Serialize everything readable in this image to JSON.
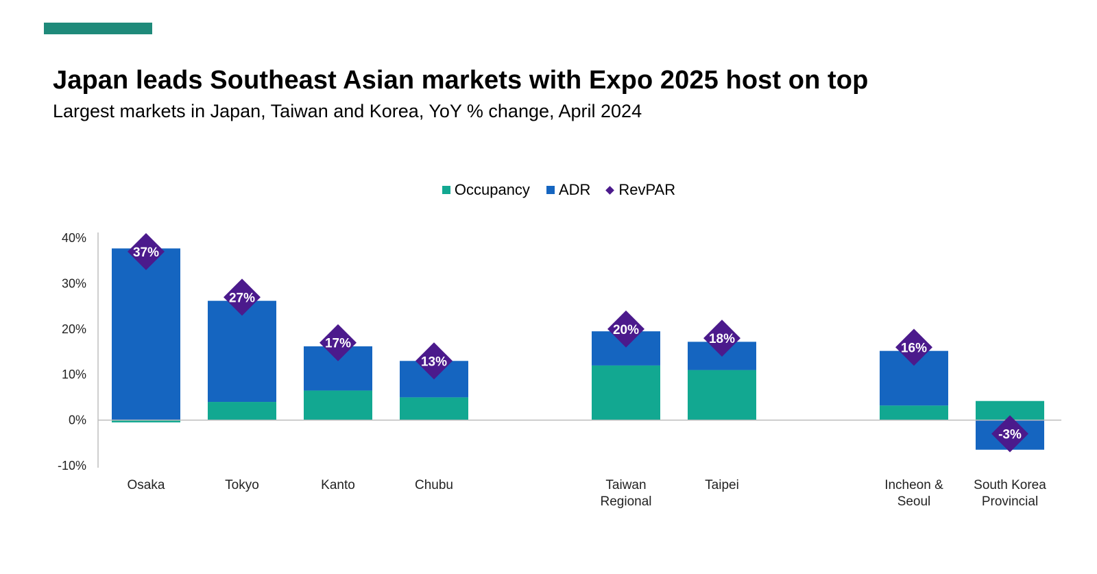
{
  "header": {
    "title": "Japan leads Southeast Asian markets with Expo 2025 host on top",
    "subtitle": "Largest markets in Japan, Taiwan and Korea, YoY % change, April 2024",
    "accent_color": "#1f8a7a"
  },
  "legend": {
    "items": [
      {
        "label": "Occupancy",
        "color": "#12a891",
        "shape": "square"
      },
      {
        "label": "ADR",
        "color": "#1565c0",
        "shape": "square"
      },
      {
        "label": "RevPAR",
        "color": "#4b1a8c",
        "shape": "diamond"
      }
    ]
  },
  "chart_data": {
    "type": "bar",
    "stacked": true,
    "categories": [
      [
        "Osaka"
      ],
      [
        "Tokyo"
      ],
      [
        "Kanto"
      ],
      [
        "Chubu"
      ],
      [
        "Taiwan",
        "Regional"
      ],
      [
        "Taipei"
      ],
      [
        "Incheon &",
        "Seoul"
      ],
      [
        "South Korea",
        "Provincial"
      ]
    ],
    "category_groups": [
      0,
      0,
      0,
      0,
      1,
      1,
      2,
      2
    ],
    "series": [
      {
        "name": "Occupancy",
        "values": [
          -0.5,
          4,
          6.5,
          5,
          12,
          11,
          3.2,
          4.2
        ],
        "color": "#12a891"
      },
      {
        "name": "ADR",
        "values": [
          37.7,
          22.2,
          9.7,
          8,
          7.5,
          6.2,
          12,
          -6.5
        ],
        "color": "#1565c0"
      }
    ],
    "markers": {
      "name": "RevPAR",
      "values": [
        37,
        27,
        17,
        13,
        20,
        18,
        16,
        -3
      ],
      "labels": [
        "37%",
        "27%",
        "17%",
        "13%",
        "20%",
        "18%",
        "16%",
        "-3%"
      ],
      "color": "#4b1a8c"
    },
    "ylim": [
      -10,
      40
    ],
    "yticks": [
      40,
      30,
      20,
      10,
      0,
      -10
    ],
    "ytick_labels": [
      "40%",
      "30%",
      "20%",
      "10%",
      "0%",
      "-10%"
    ],
    "xlabel": "",
    "ylabel": "",
    "grid": false,
    "legend_position": "top-center"
  }
}
